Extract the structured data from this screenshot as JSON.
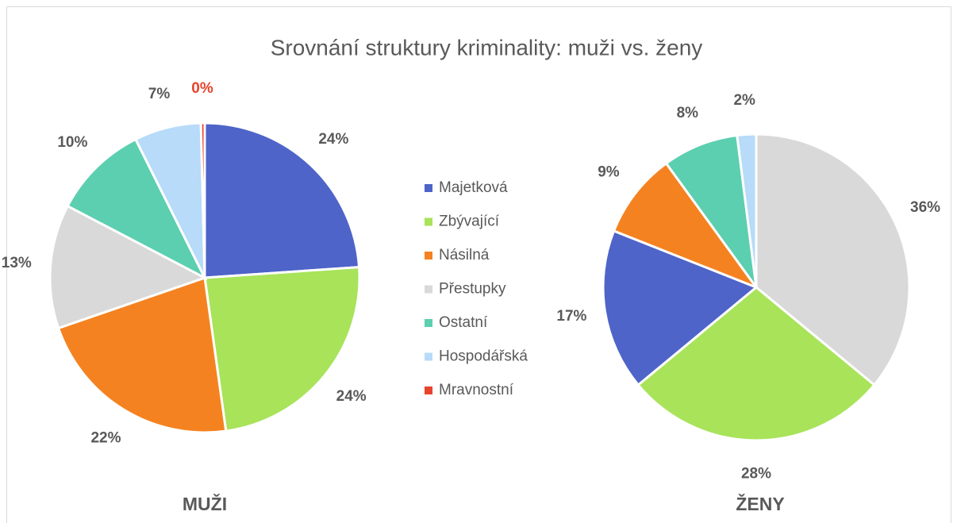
{
  "title": "Srovnání struktury kriminality: muži vs. ženy",
  "chart_data": [
    {
      "type": "pie",
      "title": "MUŽI",
      "categories": [
        "Majetková",
        "Zbývající",
        "Násilná",
        "Přestupky",
        "Ostatní",
        "Hospodářská",
        "Mravnostní"
      ],
      "values": [
        24,
        24,
        22,
        13,
        10,
        7,
        0.4
      ],
      "value_labels": [
        "24%",
        "24%",
        "22%",
        "13%",
        "10%",
        "7%",
        "0%"
      ],
      "colors": [
        "#4e64c8",
        "#a8e35a",
        "#f58220",
        "#d9d9d9",
        "#5ccfb0",
        "#b7dbf8",
        "#e8432c"
      ],
      "value_label_colors": [
        "#595959",
        "#595959",
        "#595959",
        "#595959",
        "#595959",
        "#595959",
        "#e8432c"
      ],
      "legend": true
    },
    {
      "type": "pie",
      "title": "ŽENY",
      "categories": [
        "Přestupky",
        "Zbývající",
        "Majetková",
        "Násilná",
        "Ostatní",
        "Hospodářská"
      ],
      "values": [
        36,
        28,
        17,
        9,
        8,
        2
      ],
      "value_labels": [
        "36%",
        "28%",
        "17%",
        "9%",
        "8%",
        "2%"
      ],
      "colors": [
        "#d9d9d9",
        "#a8e35a",
        "#4e64c8",
        "#f58220",
        "#5ccfb0",
        "#b7dbf8"
      ],
      "value_label_colors": [
        "#595959",
        "#595959",
        "#595959",
        "#595959",
        "#595959",
        "#595959"
      ],
      "legend": false
    }
  ]
}
